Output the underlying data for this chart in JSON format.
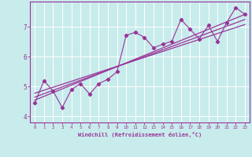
{
  "bg_color": "#c8ecec",
  "grid_color": "#ffffff",
  "line_color": "#993399",
  "xlim": [
    -0.5,
    23.5
  ],
  "ylim": [
    3.8,
    7.85
  ],
  "xticks": [
    0,
    1,
    2,
    3,
    4,
    5,
    6,
    7,
    8,
    9,
    10,
    11,
    12,
    13,
    14,
    15,
    16,
    17,
    18,
    19,
    20,
    21,
    22,
    23
  ],
  "yticks": [
    4,
    5,
    6,
    7
  ],
  "xlabel": "Windchill (Refroidissement éolien,°C)",
  "scatter_x": [
    0,
    1,
    2,
    3,
    4,
    5,
    6,
    7,
    8,
    9,
    10,
    11,
    12,
    13,
    14,
    15,
    16,
    17,
    18,
    19,
    20,
    21,
    22,
    23
  ],
  "scatter_y": [
    4.45,
    5.2,
    4.85,
    4.3,
    4.9,
    5.1,
    4.75,
    5.1,
    5.25,
    5.5,
    6.72,
    6.82,
    6.65,
    6.3,
    6.42,
    6.52,
    7.25,
    6.92,
    6.6,
    7.05,
    6.52,
    7.15,
    7.65,
    7.42
  ],
  "line1_x": [
    0,
    23
  ],
  "line1_y": [
    4.55,
    7.42
  ],
  "line2_x": [
    0,
    23
  ],
  "line2_y": [
    4.65,
    7.25
  ],
  "line3_x": [
    0,
    23
  ],
  "line3_y": [
    4.78,
    7.08
  ]
}
